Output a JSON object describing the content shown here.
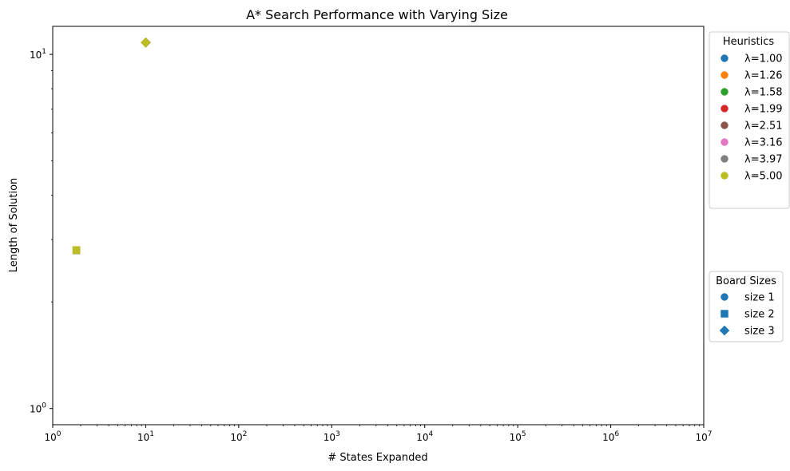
{
  "chart_data": {
    "type": "scatter",
    "title": "A* Search Performance with Varying Size",
    "xlabel": "# States Expanded",
    "ylabel": "Length of Solution",
    "xscale": "log",
    "yscale": "log",
    "xlim": [
      1,
      10000000
    ],
    "ylim": [
      0.9,
      12
    ],
    "grid": false,
    "x_ticks": [
      {
        "base": "10",
        "exp": "0",
        "value": 1
      },
      {
        "base": "10",
        "exp": "1",
        "value": 10
      },
      {
        "base": "10",
        "exp": "2",
        "value": 100
      },
      {
        "base": "10",
        "exp": "3",
        "value": 1000
      },
      {
        "base": "10",
        "exp": "4",
        "value": 10000
      },
      {
        "base": "10",
        "exp": "5",
        "value": 100000
      },
      {
        "base": "10",
        "exp": "6",
        "value": 1000000
      },
      {
        "base": "10",
        "exp": "7",
        "value": 10000000
      }
    ],
    "y_ticks": [
      {
        "base": "10",
        "exp": "0",
        "value": 1
      },
      {
        "base": "10",
        "exp": "1",
        "value": 10
      }
    ],
    "heuristics_legend": {
      "title": "Heuristics",
      "placement": "outside-top-right",
      "entries": [
        {
          "label": "λ=1.00",
          "color": "#1f77b4"
        },
        {
          "label": "λ=1.26",
          "color": "#ff7f0e"
        },
        {
          "label": "λ=1.58",
          "color": "#2ca02c"
        },
        {
          "label": "λ=1.99",
          "color": "#d62728"
        },
        {
          "label": "λ=2.51",
          "color": "#8c564b"
        },
        {
          "label": "λ=3.16",
          "color": "#e377c2"
        },
        {
          "label": "λ=3.97",
          "color": "#7f7f7f"
        },
        {
          "label": "λ=5.00",
          "color": "#bcbd22"
        }
      ]
    },
    "sizes_legend": {
      "title": "Board Sizes",
      "placement": "outside-right",
      "entries": [
        {
          "label": "size 1",
          "marker": "circle",
          "color": "#1f77b4"
        },
        {
          "label": "size 2",
          "marker": "square",
          "color": "#1f77b4"
        },
        {
          "label": "size 3",
          "marker": "diamond",
          "color": "#1f77b4"
        }
      ]
    },
    "series": [
      {
        "heuristic": "λ=1.00",
        "color": "#1f77b4",
        "points": [
          {
            "size": "size 2",
            "marker": "square",
            "x": 1.8,
            "y": 2.8
          },
          {
            "size": "size 3",
            "marker": "diamond",
            "x": 10,
            "y": 10.8
          }
        ]
      },
      {
        "heuristic": "λ=1.26",
        "color": "#ff7f0e",
        "points": [
          {
            "size": "size 2",
            "marker": "square",
            "x": 1.8,
            "y": 2.8
          },
          {
            "size": "size 3",
            "marker": "diamond",
            "x": 10,
            "y": 10.8
          }
        ]
      },
      {
        "heuristic": "λ=1.58",
        "color": "#2ca02c",
        "points": [
          {
            "size": "size 2",
            "marker": "square",
            "x": 1.8,
            "y": 2.8
          },
          {
            "size": "size 3",
            "marker": "diamond",
            "x": 10,
            "y": 10.8
          }
        ]
      },
      {
        "heuristic": "λ=1.99",
        "color": "#d62728",
        "points": [
          {
            "size": "size 2",
            "marker": "square",
            "x": 1.8,
            "y": 2.8
          },
          {
            "size": "size 3",
            "marker": "diamond",
            "x": 10,
            "y": 10.8
          }
        ]
      },
      {
        "heuristic": "λ=2.51",
        "color": "#8c564b",
        "points": [
          {
            "size": "size 2",
            "marker": "square",
            "x": 1.8,
            "y": 2.8
          },
          {
            "size": "size 3",
            "marker": "diamond",
            "x": 10,
            "y": 10.8
          }
        ]
      },
      {
        "heuristic": "λ=3.16",
        "color": "#e377c2",
        "points": [
          {
            "size": "size 2",
            "marker": "square",
            "x": 1.8,
            "y": 2.8
          },
          {
            "size": "size 3",
            "marker": "diamond",
            "x": 10,
            "y": 10.8
          }
        ]
      },
      {
        "heuristic": "λ=3.97",
        "color": "#7f7f7f",
        "points": [
          {
            "size": "size 2",
            "marker": "square",
            "x": 1.8,
            "y": 2.8
          },
          {
            "size": "size 3",
            "marker": "diamond",
            "x": 10,
            "y": 10.8
          }
        ]
      },
      {
        "heuristic": "λ=5.00",
        "color": "#bcbd22",
        "points": [
          {
            "size": "size 2",
            "marker": "square",
            "x": 1.8,
            "y": 2.8
          },
          {
            "size": "size 3",
            "marker": "diamond",
            "x": 10,
            "y": 10.8
          }
        ]
      }
    ]
  }
}
